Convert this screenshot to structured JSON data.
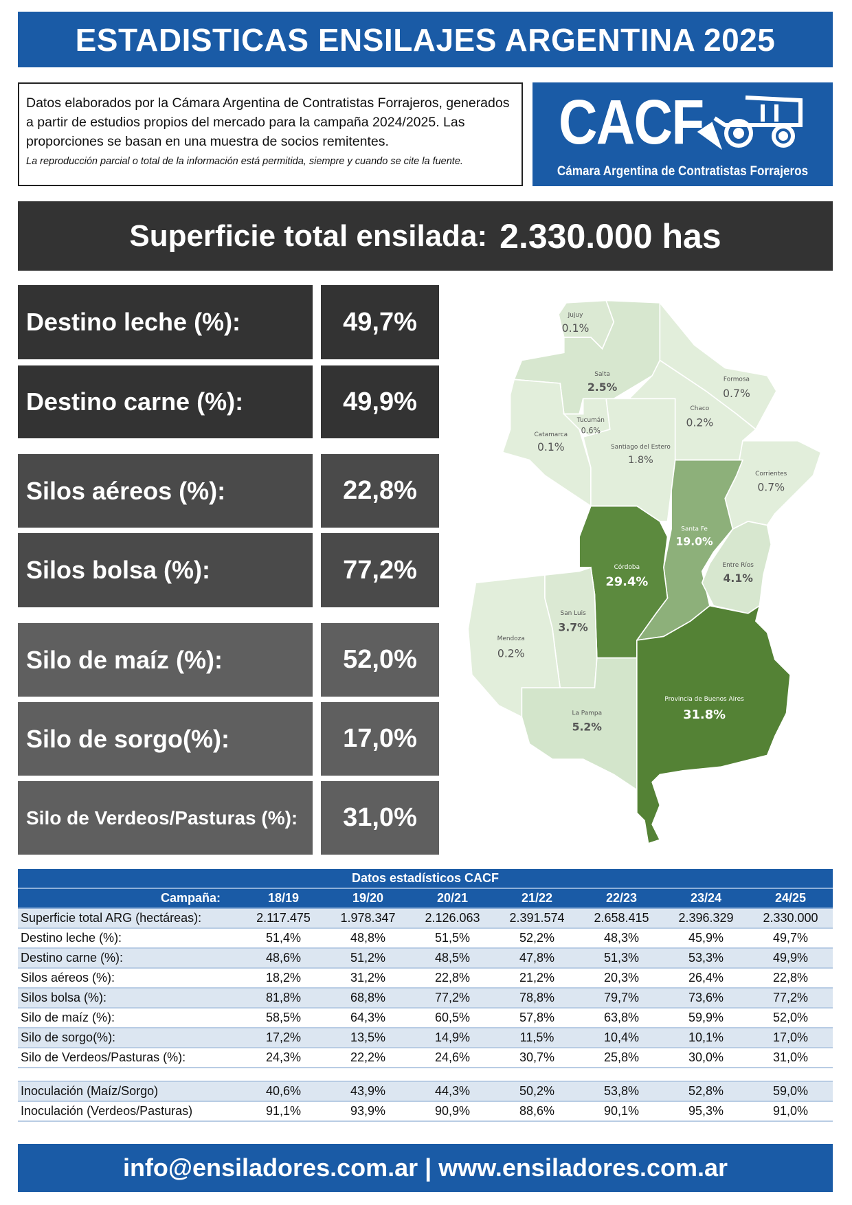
{
  "title": "ESTADISTICAS ENSILAJES ARGENTINA 2025",
  "info": {
    "text": "Datos elaborados por la Cámara Argentina de Contratistas Forrajeros, generados a partir de estudios propios del mercado para la campaña 2024/2025. Las proporciones se basan en una muestra de socios remitentes.",
    "disclaimer": "La reproducción parcial o total de la información está permitida, siempre y cuando se cite la fuente."
  },
  "logo": {
    "acronym": "CACF",
    "name": "Cámara Argentina de Contratistas Forrajeros",
    "icon": "harvester-icon"
  },
  "superficie": {
    "label": "Superficie total ensilada:",
    "value": "2.330.000 has"
  },
  "stats": [
    {
      "label": "Destino leche (%):",
      "value": "49,7%"
    },
    {
      "label": "Destino carne (%):",
      "value": "49,9%"
    },
    {
      "label": "Silos aéreos (%):",
      "value": "22,8%"
    },
    {
      "label": "Silos bolsa (%):",
      "value": "77,2%"
    },
    {
      "label": "Silo de maíz (%):",
      "value": "52,0%"
    },
    {
      "label": "Silo de sorgo(%):",
      "value": "17,0%"
    },
    {
      "label": "Silo de  Verdeos/Pasturas (%):",
      "value": "31,0%"
    }
  ],
  "map": {
    "provinces": [
      {
        "name": "Jujuy",
        "value": "0.1%"
      },
      {
        "name": "Salta",
        "value": "2.5%"
      },
      {
        "name": "Formosa",
        "value": "0.7%"
      },
      {
        "name": "Chaco",
        "value": "0.2%"
      },
      {
        "name": "Tucumán",
        "value": "0.6%"
      },
      {
        "name": "Catamarca",
        "value": "0.1%"
      },
      {
        "name": "Santiago del Estero",
        "value": "1.8%"
      },
      {
        "name": "Corrientes",
        "value": "0.7%"
      },
      {
        "name": "Santa Fe",
        "value": "19.0%"
      },
      {
        "name": "Córdoba",
        "value": "29.4%"
      },
      {
        "name": "Entre Ríos",
        "value": "4.1%"
      },
      {
        "name": "San Luis",
        "value": "3.7%"
      },
      {
        "name": "Mendoza",
        "value": "0.2%"
      },
      {
        "name": "La Pampa",
        "value": "5.2%"
      },
      {
        "name": "Provincia de Buenos Aires",
        "value": "31.8%"
      }
    ],
    "colors": {
      "low": "#e2eedb",
      "mid": "#8db07a",
      "high": "#5c8a3e",
      "top": "#548235"
    }
  },
  "table": {
    "title": "Datos estadísticos CACF",
    "header_label": "Campaña:",
    "columns": [
      "18/19",
      "19/20",
      "20/21",
      "21/22",
      "22/23",
      "23/24",
      "24/25"
    ],
    "rows": [
      {
        "label": "Superficie total ARG (hectáreas):",
        "values": [
          "2.117.475",
          "1.978.347",
          "2.126.063",
          "2.391.574",
          "2.658.415",
          "2.396.329",
          "2.330.000"
        ]
      },
      {
        "label": "Destino leche (%):",
        "values": [
          "51,4%",
          "48,8%",
          "51,5%",
          "52,2%",
          "48,3%",
          "45,9%",
          "49,7%"
        ]
      },
      {
        "label": "Destino carne (%):",
        "values": [
          "48,6%",
          "51,2%",
          "48,5%",
          "47,8%",
          "51,3%",
          "53,3%",
          "49,9%"
        ]
      },
      {
        "label": "Silos aéreos (%):",
        "values": [
          "18,2%",
          "31,2%",
          "22,8%",
          "21,2%",
          "20,3%",
          "26,4%",
          "22,8%"
        ]
      },
      {
        "label": "Silos bolsa (%):",
        "values": [
          "81,8%",
          "68,8%",
          "77,2%",
          "78,8%",
          "79,7%",
          "73,6%",
          "77,2%"
        ]
      },
      {
        "label": "Silo de maíz (%):",
        "values": [
          "58,5%",
          "64,3%",
          "60,5%",
          "57,8%",
          "63,8%",
          "59,9%",
          "52,0%"
        ]
      },
      {
        "label": "Silo de sorgo(%):",
        "values": [
          "17,2%",
          "13,5%",
          "14,9%",
          "11,5%",
          "10,4%",
          "10,1%",
          "17,0%"
        ]
      },
      {
        "label": "Silo de  Verdeos/Pasturas (%):",
        "values": [
          "24,3%",
          "22,2%",
          "24,6%",
          "30,7%",
          "25,8%",
          "30,0%",
          "31,0%"
        ]
      }
    ],
    "inoc_rows": [
      {
        "label": "Inoculación (Maíz/Sorgo)",
        "values": [
          "40,6%",
          "43,9%",
          "44,3%",
          "50,2%",
          "53,8%",
          "52,8%",
          "59,0%"
        ]
      },
      {
        "label": "Inoculación (Verdeos/Pasturas)",
        "values": [
          "91,1%",
          "93,9%",
          "90,9%",
          "88,6%",
          "90,1%",
          "95,3%",
          "91,0%"
        ]
      }
    ]
  },
  "footer": "info@ensiladores.com.ar | www.ensiladores.com.ar"
}
